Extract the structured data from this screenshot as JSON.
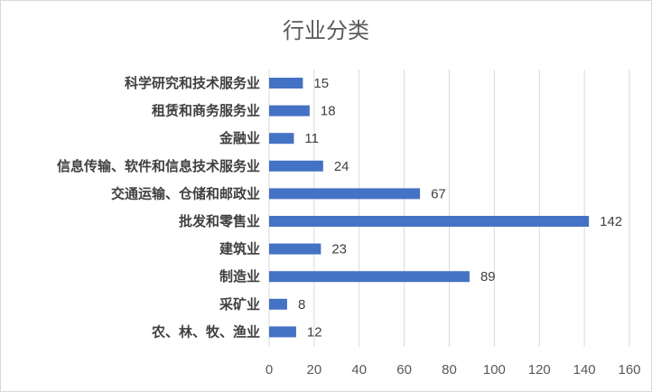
{
  "chart_data": {
    "type": "bar",
    "orientation": "horizontal",
    "title": "行业分类",
    "categories": [
      "科学研究和技术服务业",
      "租赁和商务服务业",
      "金融业",
      "信息传输、软件和信息技术服务业",
      "交通运输、仓储和邮政业",
      "批发和零售业",
      "建筑业",
      "制造业",
      "采矿业",
      "农、林、牧、渔业"
    ],
    "values": [
      15,
      18,
      11,
      24,
      67,
      142,
      23,
      89,
      8,
      12
    ],
    "xlim": [
      0,
      160
    ],
    "xticks": [
      0,
      20,
      40,
      60,
      80,
      100,
      120,
      140,
      160
    ],
    "grid": "vertical",
    "data_labels": true,
    "bar_color": "#4472c4",
    "grid_color": "#d9d9d9"
  }
}
